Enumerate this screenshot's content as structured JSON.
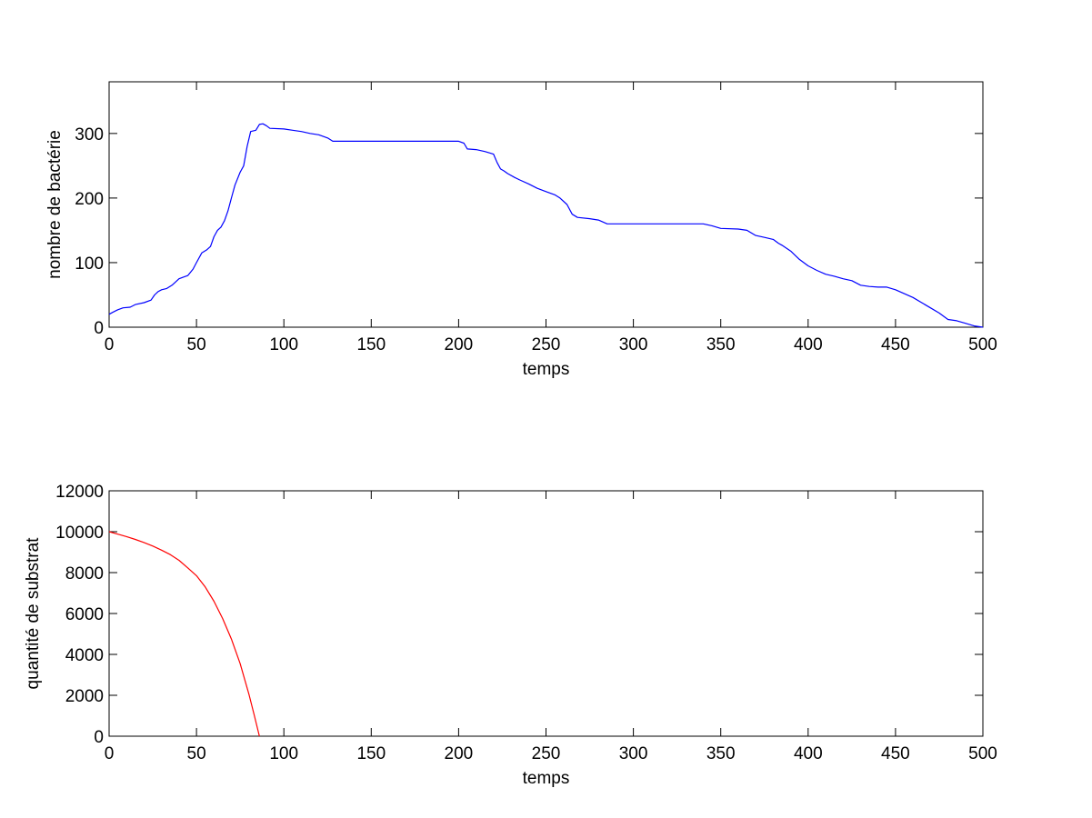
{
  "chart_data": [
    {
      "type": "line",
      "title": "",
      "xlabel": "temps",
      "ylabel": "nombre de bactérie",
      "xlim": [
        0,
        500
      ],
      "ylim": [
        0,
        380
      ],
      "xticks": [
        0,
        50,
        100,
        150,
        200,
        250,
        300,
        350,
        400,
        450,
        500
      ],
      "yticks": [
        0,
        100,
        200,
        300
      ],
      "grid": false,
      "series": [
        {
          "color": "#0000ff",
          "x": [
            0,
            2,
            5,
            8,
            12,
            15,
            20,
            24,
            26,
            28,
            30,
            33,
            36,
            38,
            40,
            43,
            45,
            48,
            50,
            53,
            56,
            58,
            60,
            62,
            64,
            66,
            68,
            70,
            72,
            75,
            77,
            79,
            81,
            84,
            86,
            88,
            90,
            92,
            100,
            105,
            110,
            115,
            120,
            125,
            128,
            140,
            160,
            180,
            200,
            203,
            205,
            210,
            215,
            220,
            222,
            224,
            226,
            228,
            232,
            235,
            240,
            245,
            250,
            255,
            258,
            262,
            265,
            268,
            275,
            280,
            285,
            300,
            320,
            340,
            345,
            350,
            360,
            365,
            370,
            375,
            380,
            383,
            385,
            390,
            395,
            400,
            405,
            410,
            415,
            420,
            425,
            430,
            435,
            440,
            445,
            450,
            455,
            460,
            465,
            470,
            475,
            480,
            485,
            490,
            495,
            500
          ],
          "y": [
            20,
            23,
            27,
            30,
            31,
            35,
            38,
            42,
            50,
            55,
            58,
            60,
            65,
            70,
            75,
            78,
            80,
            90,
            100,
            115,
            120,
            125,
            140,
            150,
            155,
            165,
            180,
            200,
            220,
            240,
            250,
            280,
            303,
            305,
            314,
            315,
            312,
            308,
            307,
            305,
            303,
            300,
            298,
            293,
            288,
            288,
            288,
            288,
            288,
            285,
            276,
            275,
            272,
            268,
            255,
            245,
            242,
            238,
            232,
            228,
            222,
            215,
            210,
            205,
            200,
            190,
            175,
            170,
            168,
            166,
            160,
            160,
            160,
            160,
            157,
            153,
            152,
            150,
            142,
            139,
            136,
            130,
            127,
            118,
            105,
            95,
            88,
            82,
            79,
            75,
            72,
            65,
            63,
            62,
            62,
            58,
            52,
            46,
            38,
            30,
            22,
            12,
            10,
            6,
            2,
            0
          ]
        }
      ]
    },
    {
      "type": "line",
      "title": "",
      "xlabel": "temps",
      "ylabel": "quantité de substrat",
      "xlim": [
        0,
        500
      ],
      "ylim": [
        0,
        12000
      ],
      "xticks": [
        0,
        50,
        100,
        150,
        200,
        250,
        300,
        350,
        400,
        450,
        500
      ],
      "yticks": [
        0,
        2000,
        4000,
        6000,
        8000,
        10000,
        12000
      ],
      "grid": false,
      "series": [
        {
          "color": "#ff0000",
          "x": [
            0,
            5,
            10,
            15,
            20,
            25,
            30,
            35,
            40,
            45,
            50,
            55,
            60,
            65,
            70,
            75,
            80,
            83,
            86
          ],
          "y": [
            10000,
            9880,
            9760,
            9620,
            9470,
            9300,
            9100,
            8880,
            8600,
            8230,
            7850,
            7300,
            6600,
            5750,
            4750,
            3550,
            2050,
            1050,
            0
          ]
        }
      ]
    }
  ]
}
